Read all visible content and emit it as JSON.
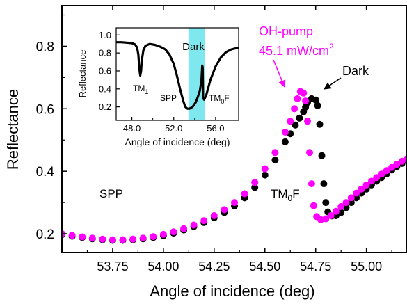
{
  "chart_data": [
    {
      "type": "scatter",
      "title": "",
      "xlabel": "Angle of incidence (deg)",
      "ylabel": "Reflectance",
      "xlim": [
        53.5,
        55.2
      ],
      "ylim": [
        0.14,
        0.93
      ],
      "xticks": [
        53.75,
        54.0,
        54.25,
        54.5,
        54.75,
        55.0
      ],
      "xtick_labels": [
        "53.75",
        "54.00",
        "54.25",
        "54.50",
        "54.75",
        "55.00"
      ],
      "yticks": [
        0.2,
        0.4,
        0.6,
        0.8
      ],
      "ytick_labels": [
        "0.2",
        "0.4",
        "0.6",
        "0.8"
      ],
      "grid": false,
      "series": [
        {
          "name": "Dark",
          "color": "#000000",
          "points": [
            [
              53.5,
              0.197
            ],
            [
              53.55,
              0.192
            ],
            [
              53.6,
              0.188
            ],
            [
              53.65,
              0.184
            ],
            [
              53.7,
              0.181
            ],
            [
              53.75,
              0.179
            ],
            [
              53.8,
              0.179
            ],
            [
              53.85,
              0.181
            ],
            [
              53.9,
              0.184
            ],
            [
              53.95,
              0.188
            ],
            [
              54.0,
              0.194
            ],
            [
              54.05,
              0.202
            ],
            [
              54.1,
              0.212
            ],
            [
              54.15,
              0.223
            ],
            [
              54.2,
              0.236
            ],
            [
              54.25,
              0.251
            ],
            [
              54.3,
              0.268
            ],
            [
              54.35,
              0.289
            ],
            [
              54.4,
              0.315
            ],
            [
              54.45,
              0.348
            ],
            [
              54.5,
              0.388
            ],
            [
              54.55,
              0.436
            ],
            [
              54.6,
              0.494
            ],
            [
              54.625,
              0.52
            ],
            [
              54.65,
              0.548
            ],
            [
              54.67,
              0.57
            ],
            [
              54.69,
              0.59
            ],
            [
              54.7,
              0.605
            ],
            [
              54.71,
              0.62
            ],
            [
              54.73,
              0.632
            ],
            [
              54.75,
              0.628
            ],
            [
              54.76,
              0.61
            ],
            [
              54.77,
              0.55
            ],
            [
              54.78,
              0.45
            ],
            [
              54.79,
              0.36
            ],
            [
              54.8,
              0.3
            ],
            [
              54.81,
              0.27
            ],
            [
              54.83,
              0.257
            ],
            [
              54.85,
              0.258
            ],
            [
              54.875,
              0.268
            ],
            [
              54.9,
              0.284
            ],
            [
              54.925,
              0.3
            ],
            [
              54.95,
              0.315
            ],
            [
              54.975,
              0.33
            ],
            [
              55.0,
              0.343
            ],
            [
              55.025,
              0.356
            ],
            [
              55.05,
              0.368
            ],
            [
              55.075,
              0.38
            ],
            [
              55.1,
              0.392
            ],
            [
              55.125,
              0.404
            ],
            [
              55.15,
              0.415
            ],
            [
              55.175,
              0.425
            ],
            [
              55.2,
              0.435
            ]
          ]
        },
        {
          "name": "OH-pump 45.1 mW/cm2",
          "color": "#ff00ff",
          "points": [
            [
              53.5,
              0.2
            ],
            [
              53.55,
              0.195
            ],
            [
              53.6,
              0.19
            ],
            [
              53.65,
              0.186
            ],
            [
              53.7,
              0.183
            ],
            [
              53.75,
              0.181
            ],
            [
              53.8,
              0.181
            ],
            [
              53.85,
              0.183
            ],
            [
              53.9,
              0.186
            ],
            [
              53.95,
              0.191
            ],
            [
              54.0,
              0.198
            ],
            [
              54.05,
              0.206
            ],
            [
              54.1,
              0.216
            ],
            [
              54.15,
              0.228
            ],
            [
              54.2,
              0.242
            ],
            [
              54.25,
              0.258
            ],
            [
              54.3,
              0.277
            ],
            [
              54.35,
              0.3
            ],
            [
              54.4,
              0.328
            ],
            [
              54.45,
              0.364
            ],
            [
              54.5,
              0.408
            ],
            [
              54.55,
              0.46
            ],
            [
              54.6,
              0.525
            ],
            [
              54.625,
              0.56
            ],
            [
              54.645,
              0.6
            ],
            [
              54.66,
              0.632
            ],
            [
              54.675,
              0.655
            ],
            [
              54.69,
              0.65
            ],
            [
              54.7,
              0.625
            ],
            [
              54.71,
              0.56
            ],
            [
              54.72,
              0.46
            ],
            [
              54.73,
              0.36
            ],
            [
              54.74,
              0.29
            ],
            [
              54.755,
              0.255
            ],
            [
              54.775,
              0.245
            ],
            [
              54.8,
              0.248
            ],
            [
              54.825,
              0.258
            ],
            [
              54.85,
              0.272
            ],
            [
              54.875,
              0.287
            ],
            [
              54.9,
              0.3
            ],
            [
              54.925,
              0.315
            ],
            [
              54.95,
              0.33
            ],
            [
              54.975,
              0.343
            ],
            [
              55.0,
              0.356
            ],
            [
              55.025,
              0.368
            ],
            [
              55.05,
              0.38
            ],
            [
              55.075,
              0.391
            ],
            [
              55.1,
              0.402
            ],
            [
              55.125,
              0.412
            ],
            [
              55.15,
              0.422
            ],
            [
              55.175,
              0.432
            ],
            [
              55.2,
              0.44
            ]
          ]
        }
      ],
      "annotations": {
        "spp": "SPP",
        "tm0f_main": "TM",
        "tm0f_sub": "0",
        "tm0f_end": "F",
        "pump_line1": "OH-pump",
        "pump_line2": "45.1 mW/cm",
        "pump_sup": "2",
        "dark": "Dark"
      }
    },
    {
      "type": "line",
      "title": "",
      "xlabel": "Angle of incidence (deg)",
      "ylabel": "Reflectance",
      "xlim": [
        46.5,
        58.2
      ],
      "ylim": [
        0.05,
        1.08
      ],
      "xticks": [
        48,
        52,
        56
      ],
      "xtick_labels": [
        "48.0",
        "52.0",
        "56.0"
      ],
      "yticks": [
        0.2,
        0.4,
        0.6,
        0.8,
        1.0
      ],
      "ytick_labels": [
        "0.2",
        "0.4",
        "0.6",
        "0.8",
        "1.0"
      ],
      "highlight": {
        "x_range": [
          53.4,
          55.0
        ],
        "label": "Dark",
        "color": "#7fe8ee"
      },
      "series": [
        {
          "name": "Dark",
          "color": "#000000",
          "points": [
            [
              46.5,
              0.92
            ],
            [
              47.0,
              0.92
            ],
            [
              47.5,
              0.915
            ],
            [
              48.0,
              0.91
            ],
            [
              48.3,
              0.895
            ],
            [
              48.5,
              0.86
            ],
            [
              48.62,
              0.78
            ],
            [
              48.72,
              0.62
            ],
            [
              48.8,
              0.55
            ],
            [
              48.88,
              0.6
            ],
            [
              48.95,
              0.72
            ],
            [
              49.1,
              0.83
            ],
            [
              49.3,
              0.88
            ],
            [
              49.7,
              0.9
            ],
            [
              50.2,
              0.89
            ],
            [
              50.7,
              0.87
            ],
            [
              51.2,
              0.84
            ],
            [
              51.6,
              0.78
            ],
            [
              52.0,
              0.68
            ],
            [
              52.3,
              0.55
            ],
            [
              52.6,
              0.4
            ],
            [
              52.9,
              0.27
            ],
            [
              53.1,
              0.2
            ],
            [
              53.3,
              0.18
            ],
            [
              53.5,
              0.18
            ],
            [
              53.8,
              0.2
            ],
            [
              54.1,
              0.25
            ],
            [
              54.3,
              0.31
            ],
            [
              54.5,
              0.38
            ],
            [
              54.65,
              0.5
            ],
            [
              54.72,
              0.66
            ],
            [
              54.76,
              0.64
            ],
            [
              54.8,
              0.3
            ],
            [
              54.9,
              0.28
            ],
            [
              55.1,
              0.33
            ],
            [
              55.5,
              0.5
            ],
            [
              56.0,
              0.65
            ],
            [
              56.5,
              0.75
            ],
            [
              57.0,
              0.81
            ],
            [
              57.5,
              0.84
            ],
            [
              58.2,
              0.86
            ]
          ]
        }
      ],
      "annotations": {
        "tm1_main": "TM",
        "tm1_sub": "1",
        "spp": "SPP",
        "tm0f_main": "TM",
        "tm0f_sub": "0",
        "tm0f_end": "F"
      }
    }
  ]
}
